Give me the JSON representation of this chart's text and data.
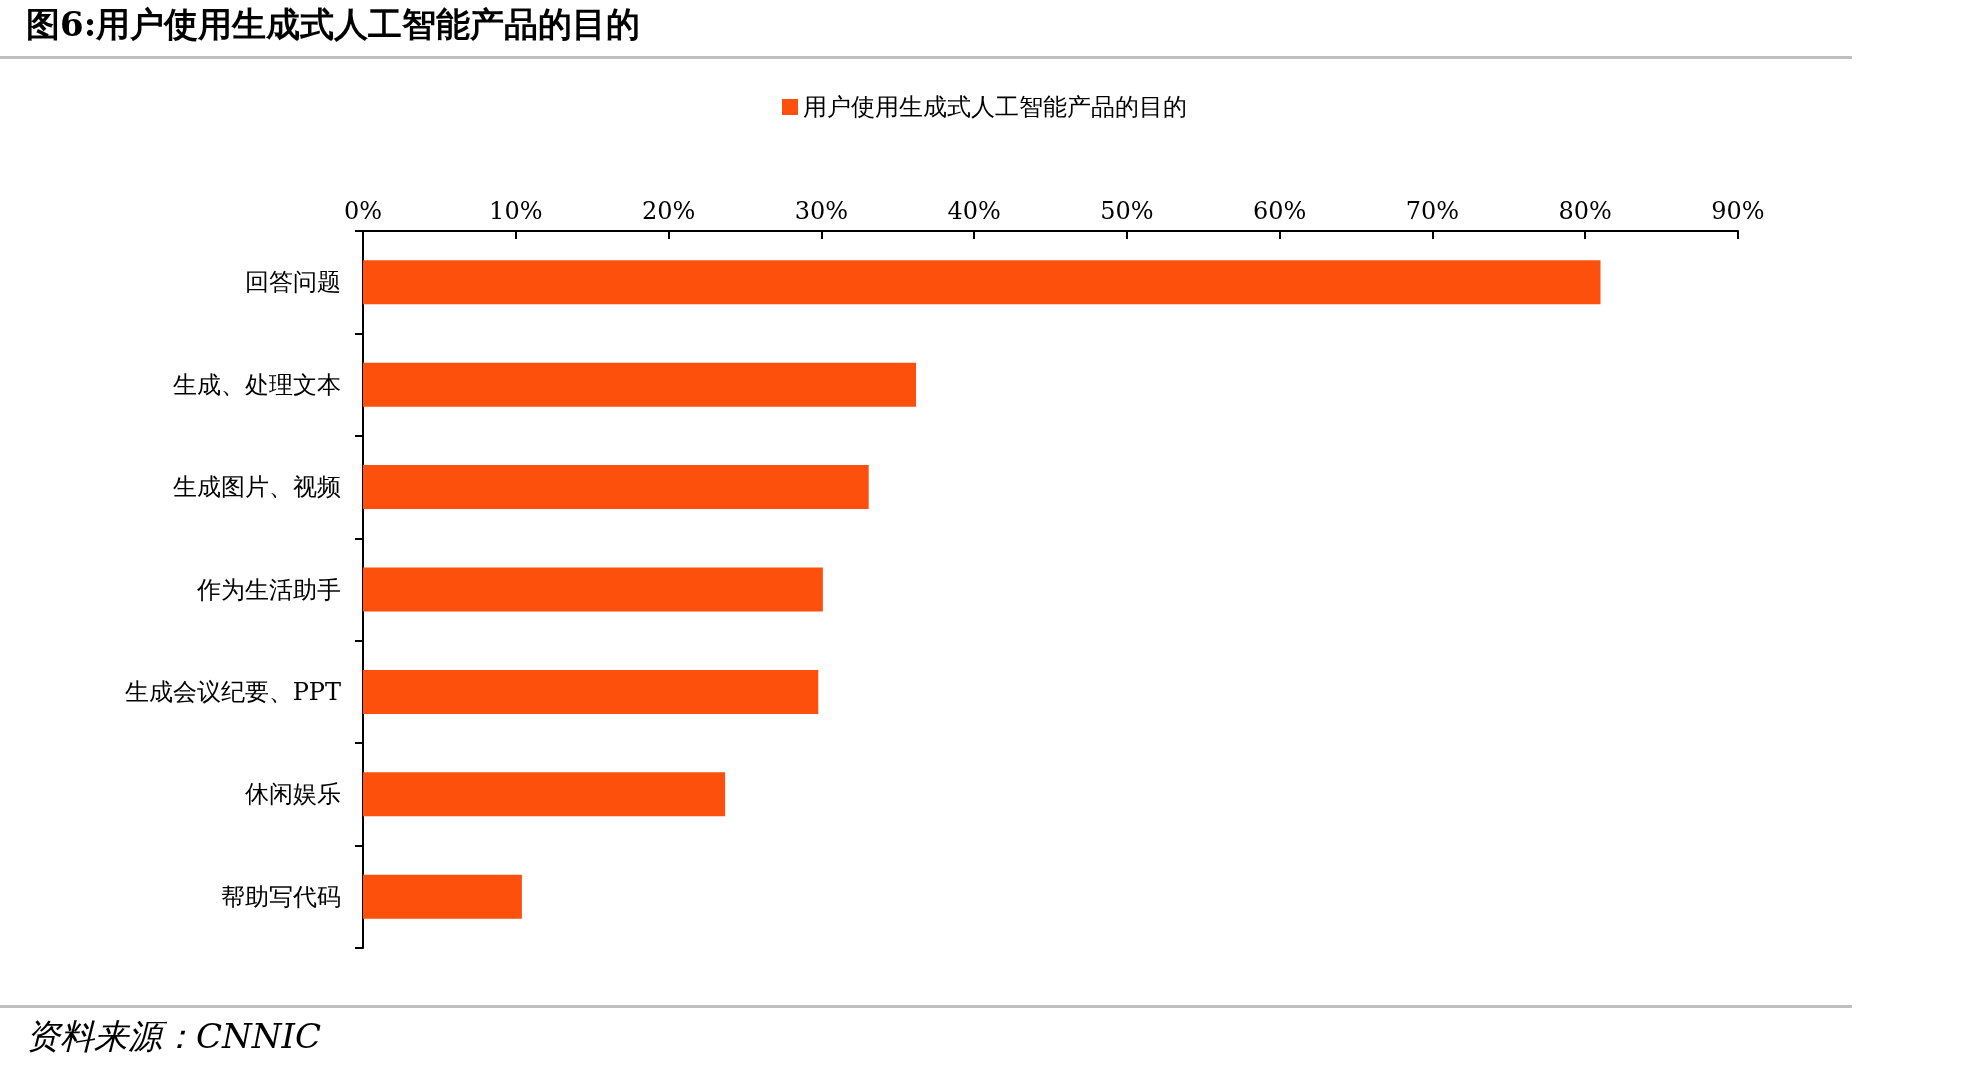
{
  "chart_data": {
    "type": "bar",
    "orientation": "horizontal",
    "title": "图6:用户使用生成式人工智能产品的目的",
    "categories": [
      "回答问题",
      "生成、处理文本",
      "生成图片、视频",
      "作为生活助手",
      "生成会议纪要、PPT",
      "休闲娱乐",
      "帮助写代码"
    ],
    "series": [
      {
        "name": "用户使用生成式人工智能产品的目的",
        "color": "#fc500c",
        "values": [
          81,
          36.2,
          33.1,
          30.1,
          29.8,
          23.7,
          10.4
        ]
      }
    ],
    "xlim": [
      0,
      90
    ],
    "xticks": [
      {
        "value": 0,
        "label": "0%"
      },
      {
        "value": 10,
        "label": "10%"
      },
      {
        "value": 20,
        "label": "20%"
      },
      {
        "value": 30,
        "label": "30%"
      },
      {
        "value": 40,
        "label": "40%"
      },
      {
        "value": 50,
        "label": "50%"
      },
      {
        "value": 60,
        "label": "60%"
      },
      {
        "value": 70,
        "label": "70%"
      },
      {
        "value": 80,
        "label": "80%"
      },
      {
        "value": 90,
        "label": "90%"
      }
    ],
    "grid": false,
    "legend": "top",
    "annotations": [
      "资料来源：CNNIC"
    ]
  }
}
